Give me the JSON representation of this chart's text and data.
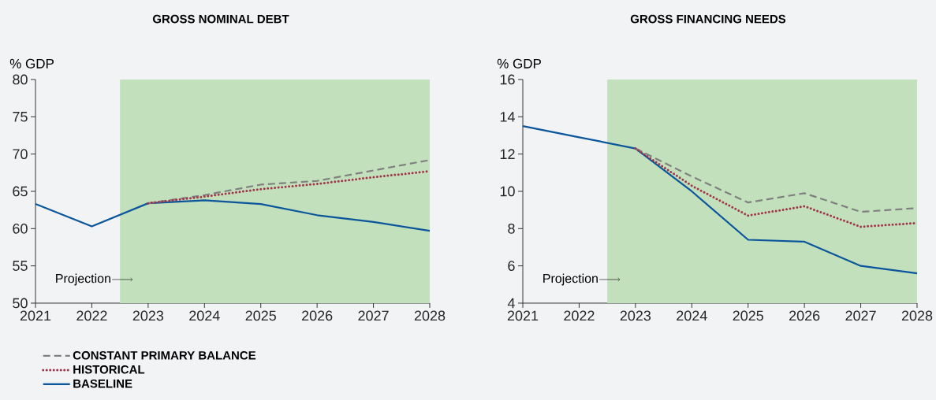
{
  "chart_data": [
    {
      "type": "line",
      "title": "GROSS NOMINAL DEBT",
      "ylabel": "% GDP",
      "xlim": [
        2021,
        2028
      ],
      "xticks": [
        2021,
        2022,
        2023,
        2024,
        2025,
        2026,
        2027,
        2028
      ],
      "ylim": [
        50,
        80
      ],
      "yticks": [
        50,
        55,
        60,
        65,
        70,
        75,
        80
      ],
      "legend": "bottom left",
      "bands": [
        {
          "axis": "x",
          "from": 2022.5,
          "to": 2028,
          "label": "Projection",
          "color": "#c3e0bd"
        }
      ],
      "series": [
        {
          "name": "CONSTANT PRIMARY BALANCE",
          "color": "#808080",
          "line_style": "dashed",
          "x": [
            2023,
            2024,
            2025,
            2026,
            2027,
            2028
          ],
          "values": [
            63.4,
            64.5,
            65.9,
            66.4,
            67.8,
            69.2
          ]
        },
        {
          "name": "HISTORICAL",
          "color": "#a0344a",
          "line_style": "dotted",
          "x": [
            2023,
            2024,
            2025,
            2026,
            2027,
            2028
          ],
          "values": [
            63.4,
            64.3,
            65.3,
            66.0,
            66.9,
            67.7
          ]
        },
        {
          "name": "BASELINE",
          "color": "#0b559b",
          "line_style": "solid",
          "x": [
            2021,
            2022,
            2023,
            2024,
            2025,
            2026,
            2027,
            2028
          ],
          "values": [
            63.3,
            60.3,
            63.4,
            63.8,
            63.3,
            61.8,
            60.9,
            59.7
          ]
        }
      ]
    },
    {
      "type": "line",
      "title": "GROSS FINANCING NEEDS",
      "ylabel": "% GDP",
      "xlim": [
        2021,
        2028
      ],
      "xticks": [
        2021,
        2022,
        2023,
        2024,
        2025,
        2026,
        2027,
        2028
      ],
      "ylim": [
        4,
        16
      ],
      "yticks": [
        4,
        6,
        8,
        10,
        12,
        14,
        16
      ],
      "bands": [
        {
          "axis": "x",
          "from": 2022.5,
          "to": 2028,
          "label": "Projection",
          "color": "#c3e0bd"
        }
      ],
      "series": [
        {
          "color": "#808080",
          "line_style": "dashed",
          "x": [
            2023,
            2024,
            2025,
            2026,
            2027,
            2028
          ],
          "values": [
            12.3,
            10.8,
            9.4,
            9.9,
            8.9,
            9.1
          ]
        },
        {
          "color": "#a0344a",
          "line_style": "dotted",
          "x": [
            2023,
            2024,
            2025,
            2026,
            2027,
            2028
          ],
          "values": [
            12.3,
            10.3,
            8.7,
            9.2,
            8.1,
            8.3
          ]
        },
        {
          "color": "#0b559b",
          "line_style": "solid",
          "x": [
            2021,
            2022,
            2023,
            2024,
            2025,
            2026,
            2027,
            2028
          ],
          "values": [
            13.5,
            12.9,
            12.3,
            10.0,
            7.4,
            7.3,
            6.0,
            5.6
          ]
        }
      ]
    }
  ]
}
